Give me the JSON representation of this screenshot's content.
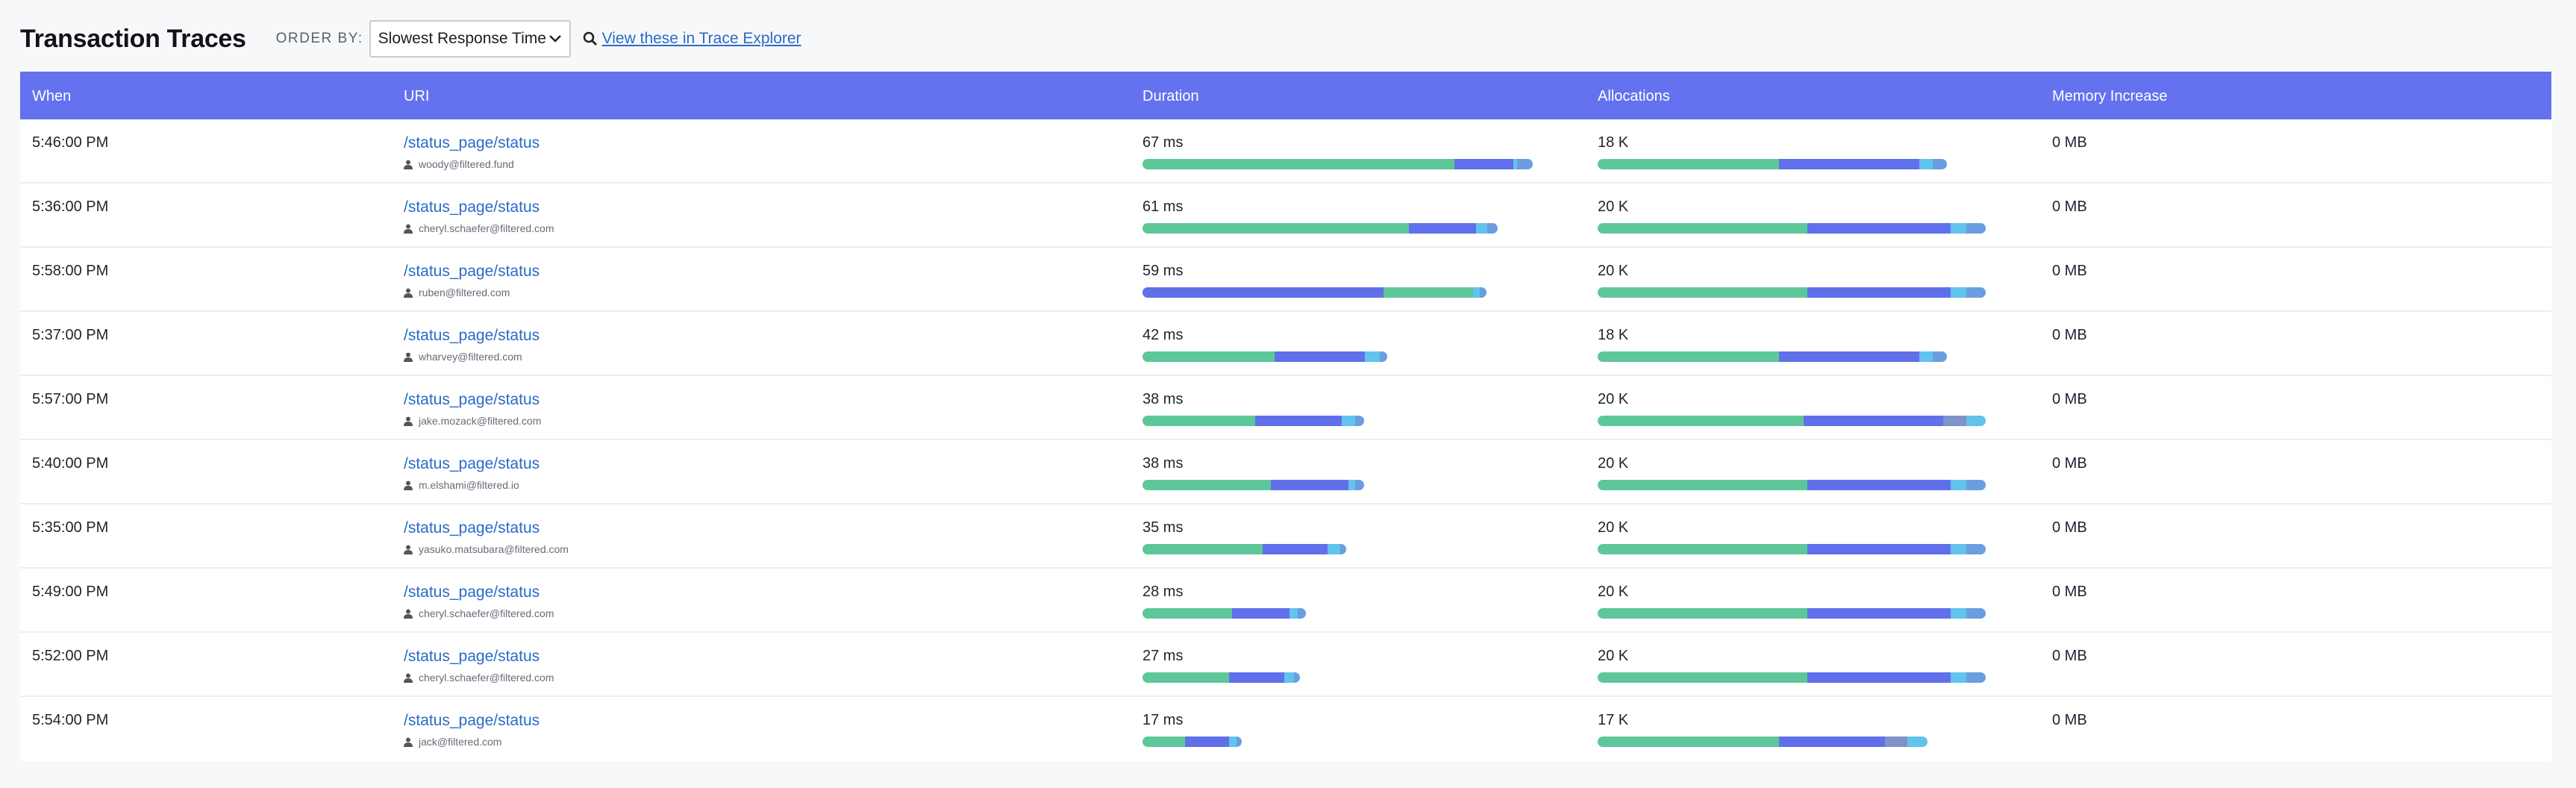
{
  "header": {
    "title": "Transaction Traces",
    "order_label": "ORDER BY:",
    "order_value": "Slowest Response Time",
    "explorer_link": "View these in Trace Explorer"
  },
  "table": {
    "columns": [
      "When",
      "URI",
      "Duration",
      "Allocations",
      "Memory Increase"
    ],
    "rows": [
      {
        "when": "5:46:00 PM",
        "uri": "/status_page/status",
        "user": "woody@filtered.fund",
        "duration": "67 ms",
        "allocations": "18 K",
        "memory": "0 MB"
      },
      {
        "when": "5:36:00 PM",
        "uri": "/status_page/status",
        "user": "cheryl.schaefer@filtered.com",
        "duration": "61 ms",
        "allocations": "20 K",
        "memory": "0 MB"
      },
      {
        "when": "5:58:00 PM",
        "uri": "/status_page/status",
        "user": "ruben@filtered.com",
        "duration": "59 ms",
        "allocations": "20 K",
        "memory": "0 MB"
      },
      {
        "when": "5:37:00 PM",
        "uri": "/status_page/status",
        "user": "wharvey@filtered.com",
        "duration": "42 ms",
        "allocations": "18 K",
        "memory": "0 MB"
      },
      {
        "when": "5:57:00 PM",
        "uri": "/status_page/status",
        "user": "jake.mozack@filtered.com",
        "duration": "38 ms",
        "allocations": "20 K",
        "memory": "0 MB"
      },
      {
        "when": "5:40:00 PM",
        "uri": "/status_page/status",
        "user": "m.elshami@filtered.io",
        "duration": "38 ms",
        "allocations": "20 K",
        "memory": "0 MB"
      },
      {
        "when": "5:35:00 PM",
        "uri": "/status_page/status",
        "user": "yasuko.matsubara@filtered.com",
        "duration": "35 ms",
        "allocations": "20 K",
        "memory": "0 MB"
      },
      {
        "when": "5:49:00 PM",
        "uri": "/status_page/status",
        "user": "cheryl.schaefer@filtered.com",
        "duration": "28 ms",
        "allocations": "20 K",
        "memory": "0 MB"
      },
      {
        "when": "5:52:00 PM",
        "uri": "/status_page/status",
        "user": "cheryl.schaefer@filtered.com",
        "duration": "27 ms",
        "allocations": "20 K",
        "memory": "0 MB"
      },
      {
        "when": "5:54:00 PM",
        "uri": "/status_page/status",
        "user": "jack@filtered.com",
        "duration": "17 ms",
        "allocations": "17 K",
        "memory": "0 MB"
      }
    ]
  },
  "bars": {
    "colors": {
      "green": "#5ec79a",
      "blue": "#6070ea",
      "light_blue": "#62c3ec",
      "mid_blue": "#6a9ee0",
      "gray_blue": "#7e93c8"
    },
    "duration_scale_max": 67,
    "allocation_scale_max": 20,
    "duration": [
      [
        [
          "green",
          0.8
        ],
        [
          "blue",
          0.15
        ],
        [
          "light_blue",
          0.01
        ],
        [
          "mid_blue",
          0.04
        ]
      ],
      [
        [
          "green",
          0.75
        ],
        [
          "blue",
          0.19
        ],
        [
          "light_blue",
          0.03
        ],
        [
          "mid_blue",
          0.03
        ]
      ],
      [
        [
          "blue",
          0.7
        ],
        [
          "green",
          0.26
        ],
        [
          "light_blue",
          0.02
        ],
        [
          "mid_blue",
          0.02
        ]
      ],
      [
        [
          "green",
          0.54
        ],
        [
          "blue",
          0.37
        ],
        [
          "light_blue",
          0.06
        ],
        [
          "mid_blue",
          0.03
        ]
      ],
      [
        [
          "green",
          0.51
        ],
        [
          "blue",
          0.39
        ],
        [
          "light_blue",
          0.06
        ],
        [
          "mid_blue",
          0.04
        ]
      ],
      [
        [
          "green",
          0.58
        ],
        [
          "blue",
          0.35
        ],
        [
          "light_blue",
          0.03
        ],
        [
          "mid_blue",
          0.04
        ]
      ],
      [
        [
          "green",
          0.59
        ],
        [
          "blue",
          0.32
        ],
        [
          "light_blue",
          0.06
        ],
        [
          "mid_blue",
          0.03
        ]
      ],
      [
        [
          "green",
          0.55
        ],
        [
          "blue",
          0.35
        ],
        [
          "light_blue",
          0.05
        ],
        [
          "mid_blue",
          0.05
        ]
      ],
      [
        [
          "green",
          0.55
        ],
        [
          "blue",
          0.35
        ],
        [
          "light_blue",
          0.06
        ],
        [
          "mid_blue",
          0.04
        ]
      ],
      [
        [
          "green",
          0.43
        ],
        [
          "blue",
          0.44
        ],
        [
          "light_blue",
          0.08
        ],
        [
          "mid_blue",
          0.05
        ]
      ]
    ],
    "allocations": [
      [
        [
          "green",
          0.52
        ],
        [
          "blue",
          0.4
        ],
        [
          "light_blue",
          0.04
        ],
        [
          "mid_blue",
          0.04
        ]
      ],
      [
        [
          "green",
          0.54
        ],
        [
          "blue",
          0.37
        ],
        [
          "light_blue",
          0.04
        ],
        [
          "mid_blue",
          0.05
        ]
      ],
      [
        [
          "green",
          0.54
        ],
        [
          "blue",
          0.37
        ],
        [
          "light_blue",
          0.04
        ],
        [
          "mid_blue",
          0.05
        ]
      ],
      [
        [
          "green",
          0.52
        ],
        [
          "blue",
          0.4
        ],
        [
          "light_blue",
          0.04
        ],
        [
          "mid_blue",
          0.04
        ]
      ],
      [
        [
          "green",
          0.53
        ],
        [
          "blue",
          0.36
        ],
        [
          "gray_blue",
          0.06
        ],
        [
          "light_blue",
          0.05
        ]
      ],
      [
        [
          "green",
          0.54
        ],
        [
          "blue",
          0.37
        ],
        [
          "light_blue",
          0.04
        ],
        [
          "mid_blue",
          0.05
        ]
      ],
      [
        [
          "green",
          0.54
        ],
        [
          "blue",
          0.37
        ],
        [
          "light_blue",
          0.04
        ],
        [
          "mid_blue",
          0.05
        ]
      ],
      [
        [
          "green",
          0.54
        ],
        [
          "blue",
          0.37
        ],
        [
          "light_blue",
          0.04
        ],
        [
          "mid_blue",
          0.05
        ]
      ],
      [
        [
          "green",
          0.54
        ],
        [
          "blue",
          0.37
        ],
        [
          "light_blue",
          0.04
        ],
        [
          "mid_blue",
          0.05
        ]
      ],
      [
        [
          "green",
          0.55
        ],
        [
          "blue",
          0.32
        ],
        [
          "gray_blue",
          0.07
        ],
        [
          "light_blue",
          0.06
        ]
      ]
    ]
  },
  "icons": {
    "search": "search-icon",
    "user": "user-icon",
    "dropdown": "chevron-down-icon"
  }
}
